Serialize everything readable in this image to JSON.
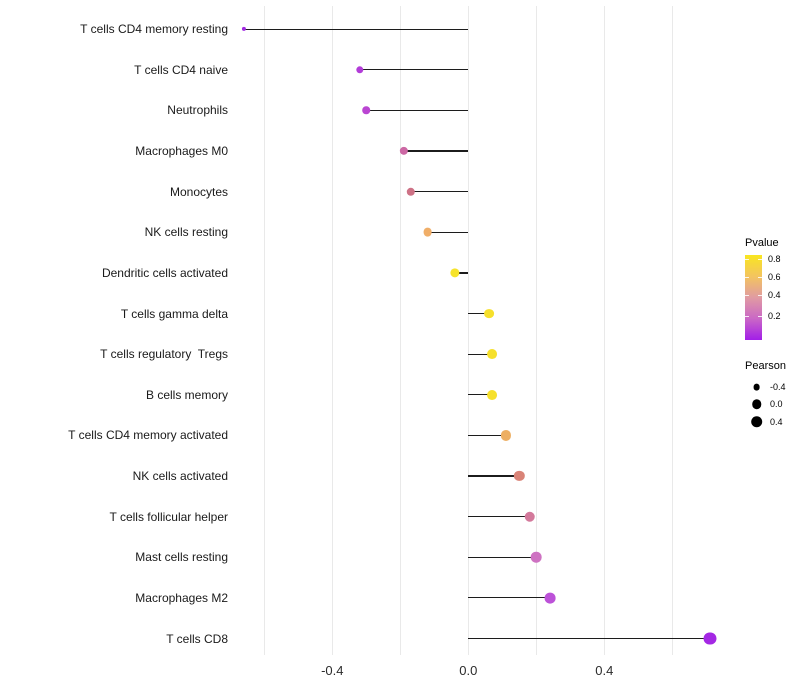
{
  "chart_data": {
    "type": "scatter",
    "subtype": "lollipop",
    "title": "",
    "xlabel": "",
    "ylabel": "",
    "grid": true,
    "background": "#ffffff",
    "stem_color": "#1c1c1c",
    "gridline_color": "#e9e9e9",
    "categories": [
      "T cells CD4 memory resting",
      "T cells CD4 naive",
      "Neutrophils",
      "Macrophages M0",
      "Monocytes",
      "NK cells resting",
      "Dendritic cells activated",
      "T cells gamma delta",
      "T cells regulatory  Tregs",
      "B cells memory",
      "T cells CD4 memory activated",
      "NK cells activated",
      "T cells follicular helper",
      "Mast cells resting",
      "Macrophages M2",
      "T cells CD8"
    ],
    "series": [
      {
        "name": "Pearson correlation",
        "values": [
          -0.66,
          -0.32,
          -0.3,
          -0.19,
          -0.17,
          -0.12,
          -0.04,
          0.06,
          0.07,
          0.07,
          0.11,
          0.15,
          0.18,
          0.2,
          0.24,
          0.71
        ],
        "point_colors": [
          "#A22BE2",
          "#B23CD8",
          "#BA45D2",
          "#CC68A4",
          "#CE7286",
          "#F0AE68",
          "#F6E32B",
          "#F6E02C",
          "#F6E02C",
          "#F6E02C",
          "#EDAF63",
          "#D98377",
          "#D3799B",
          "#CE72C2",
          "#BC52D8",
          "#A428E4"
        ]
      }
    ],
    "x_axis": {
      "range": [
        -0.72,
        0.78
      ],
      "ticks": [
        -0.4,
        0.0,
        0.4
      ],
      "tick_labels": [
        "-0.4",
        "0.0",
        "0.4"
      ],
      "gridlines": [
        -0.6,
        -0.4,
        -0.2,
        0.0,
        0.2,
        0.4,
        0.6
      ]
    },
    "legend_pvalue": {
      "title": "Pvalue",
      "tick_labels": [
        "0.8",
        "0.6",
        "0.4",
        "0.2"
      ],
      "tick_positions_pct": [
        5,
        26.2,
        47.4,
        71.8
      ],
      "gradient_top_to_bottom": [
        "#F9E620",
        "#F3C45F",
        "#E09BA2",
        "#CA67C6",
        "#A21EE8"
      ]
    },
    "legend_pearson": {
      "title": "Pearson",
      "items": [
        {
          "label": "-0.4",
          "value": -0.4
        },
        {
          "label": "0.0",
          "value": 0.0
        },
        {
          "label": "0.4",
          "value": 0.4
        }
      ],
      "dot_color": "#000000"
    }
  }
}
